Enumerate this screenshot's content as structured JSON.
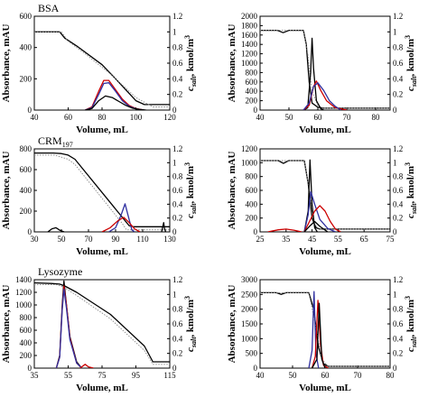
{
  "chart_data": [
    {
      "type": "line",
      "title": "BSA",
      "xlabel": "Volume, mL",
      "ylabel": "Absorbance, mAU",
      "y2label_main": "c",
      "y2label_sub": "salt",
      "y2label_unit": ", kmol/m",
      "y2label_sup": "3",
      "xlim": [
        40,
        120
      ],
      "ylim": [
        0,
        600
      ],
      "y2lim": [
        0,
        1.2
      ],
      "xticks": [
        "40",
        "60",
        "80",
        "100",
        "120"
      ],
      "yticks": [
        "0",
        "200",
        "400",
        "600"
      ],
      "y2ticks": [
        "0",
        "0.2",
        "0.4",
        "0.6",
        "0.8",
        "1",
        "1.2"
      ],
      "series": [
        {
          "color": "#000000",
          "style": "solid",
          "axis": "left",
          "x": [
            40,
            55,
            58,
            65,
            80,
            88,
            100,
            105,
            120
          ],
          "y": [
            500,
            500,
            460,
            410,
            290,
            200,
            60,
            35,
            35
          ]
        },
        {
          "color": "#888888",
          "style": "dotted",
          "axis": "left",
          "x": [
            40,
            56,
            60,
            70,
            85,
            100,
            110,
            120
          ],
          "y": [
            500,
            500,
            440,
            360,
            230,
            80,
            20,
            20
          ]
        },
        {
          "color": "#cc0000",
          "style": "solid",
          "axis": "left",
          "x": [
            70,
            74,
            78,
            81,
            84,
            88,
            92,
            96,
            100,
            105
          ],
          "y": [
            0,
            20,
            120,
            190,
            190,
            130,
            70,
            30,
            10,
            0
          ]
        },
        {
          "color": "#3030a0",
          "style": "solid",
          "axis": "left",
          "x": [
            70,
            74,
            78,
            81,
            84,
            88,
            92,
            96,
            100,
            105
          ],
          "y": [
            0,
            15,
            100,
            170,
            175,
            120,
            60,
            25,
            8,
            0
          ]
        },
        {
          "color": "#000000",
          "style": "solid",
          "axis": "left",
          "x": [
            70,
            74,
            78,
            82,
            86,
            90,
            94,
            98,
            102,
            106
          ],
          "y": [
            0,
            10,
            60,
            90,
            80,
            55,
            30,
            12,
            4,
            0
          ]
        }
      ]
    },
    {
      "type": "line",
      "title": "",
      "xlabel": "Volume, mL",
      "ylabel": "Absorbance, mAU",
      "y2label_main": "c",
      "y2label_sub": "salt",
      "y2label_unit": ", kmol/m",
      "y2label_sup": "3",
      "xlim": [
        40,
        85
      ],
      "ylim": [
        0,
        2000
      ],
      "y2lim": [
        0,
        1.2
      ],
      "xticks": [
        "40",
        "50",
        "60",
        "70",
        "80"
      ],
      "yticks": [
        "0",
        "200",
        "400",
        "600",
        "800",
        "1000",
        "1200",
        "1400",
        "1600",
        "1800",
        "2000"
      ],
      "y2ticks": [
        "0",
        "0.2",
        "0.4",
        "0.6",
        "0.8",
        "1",
        "1.2"
      ],
      "series": [
        {
          "color": "#000000",
          "style": "solid",
          "axis": "left",
          "x": [
            40,
            46,
            48,
            50,
            55,
            56,
            57,
            58,
            60,
            62,
            85
          ],
          "y": [
            1700,
            1700,
            1650,
            1700,
            1700,
            1400,
            600,
            150,
            60,
            40,
            40
          ]
        },
        {
          "color": "#888888",
          "style": "dotted",
          "axis": "left",
          "x": [
            40,
            55,
            56.5,
            58,
            60,
            62,
            85
          ],
          "y": [
            1700,
            1700,
            1200,
            400,
            100,
            40,
            40
          ]
        },
        {
          "color": "#000000",
          "style": "solid",
          "axis": "left",
          "x": [
            55,
            56.5,
            57.5,
            58,
            58.5,
            59.5,
            61,
            62
          ],
          "y": [
            0,
            50,
            800,
            1530,
            900,
            200,
            30,
            0
          ]
        },
        {
          "color": "#cc0000",
          "style": "solid",
          "axis": "left",
          "x": [
            55,
            57,
            58.5,
            59.5,
            61,
            63,
            66,
            70
          ],
          "y": [
            0,
            100,
            500,
            620,
            420,
            200,
            50,
            0
          ]
        },
        {
          "color": "#3030a0",
          "style": "solid",
          "axis": "left",
          "x": [
            55,
            57,
            58.5,
            60,
            62,
            64,
            66,
            68
          ],
          "y": [
            0,
            150,
            500,
            580,
            420,
            200,
            80,
            0
          ]
        }
      ]
    },
    {
      "type": "line",
      "title": "CRM",
      "title_sub": "197",
      "xlabel": "Volume, mL",
      "ylabel": "Absorbance, mAU",
      "y2label_main": "c",
      "y2label_sub": "salt",
      "y2label_unit": ", kmol/m",
      "y2label_sup": "3",
      "xlim": [
        30,
        130
      ],
      "ylim": [
        0,
        800
      ],
      "y2lim": [
        0,
        1.2
      ],
      "xticks": [
        "30",
        "50",
        "70",
        "90",
        "110",
        "130"
      ],
      "yticks": [
        "0",
        "200",
        "400",
        "600",
        "800"
      ],
      "y2ticks": [
        "0",
        "0.2",
        "0.4",
        "0.6",
        "0.8",
        "1",
        "1.2"
      ],
      "series": [
        {
          "color": "#000000",
          "style": "solid",
          "axis": "left",
          "x": [
            30,
            44,
            50,
            55,
            60,
            100,
            103,
            130
          ],
          "y": [
            760,
            760,
            755,
            740,
            700,
            60,
            50,
            50
          ]
        },
        {
          "color": "#888888",
          "style": "dotted",
          "axis": "left",
          "x": [
            30,
            45,
            55,
            60,
            95,
            98,
            130
          ],
          "y": [
            740,
            740,
            700,
            650,
            80,
            20,
            20
          ]
        },
        {
          "color": "#000000",
          "style": "solid",
          "axis": "left",
          "x": [
            40,
            43,
            46,
            49,
            52
          ],
          "y": [
            0,
            30,
            40,
            15,
            0
          ]
        },
        {
          "color": "#3030a0",
          "style": "solid",
          "axis": "left",
          "x": [
            85,
            90,
            94,
            97,
            100,
            102,
            104
          ],
          "y": [
            0,
            40,
            160,
            270,
            120,
            20,
            0
          ]
        },
        {
          "color": "#cc0000",
          "style": "solid",
          "axis": "left",
          "x": [
            80,
            86,
            92,
            96,
            100,
            104,
            108
          ],
          "y": [
            0,
            40,
            110,
            140,
            90,
            30,
            0
          ]
        },
        {
          "color": "#000000",
          "style": "solid",
          "axis": "left",
          "x": [
            124,
            125.5,
            126,
            127
          ],
          "y": [
            0,
            90,
            40,
            0
          ]
        }
      ]
    },
    {
      "type": "line",
      "title": "",
      "xlabel": "Volume, mL",
      "ylabel": "Absorbance, mAU",
      "y2label_main": "c",
      "y2label_sub": "salt",
      "y2label_unit": ", kmol/m",
      "y2label_sup": "3",
      "xlim": [
        25,
        75
      ],
      "ylim": [
        0,
        1200
      ],
      "y2lim": [
        0,
        1.2
      ],
      "xticks": [
        "25",
        "35",
        "45",
        "55",
        "65",
        "75"
      ],
      "yticks": [
        "0",
        "200",
        "400",
        "600",
        "800",
        "1000",
        "1200"
      ],
      "y2ticks": [
        "0",
        "0.2",
        "0.4",
        "0.6",
        "0.8",
        "1",
        "1.2"
      ],
      "series": [
        {
          "color": "#000000",
          "style": "solid",
          "axis": "left",
          "x": [
            25,
            32,
            34,
            36,
            42,
            43.5,
            45,
            46.5,
            48,
            75
          ],
          "y": [
            1030,
            1030,
            990,
            1030,
            1030,
            700,
            200,
            60,
            40,
            40
          ]
        },
        {
          "color": "#888888",
          "style": "dotted",
          "axis": "left",
          "x": [
            25,
            42,
            44,
            46,
            48,
            75
          ],
          "y": [
            1030,
            1030,
            600,
            100,
            40,
            40
          ]
        },
        {
          "color": "#000000",
          "style": "solid",
          "axis": "left",
          "x": [
            42,
            43.5,
            44.2,
            45,
            46,
            47
          ],
          "y": [
            0,
            300,
            1040,
            400,
            60,
            0
          ]
        },
        {
          "color": "#3030a0",
          "style": "solid",
          "axis": "left",
          "x": [
            42,
            43.5,
            44.5,
            46,
            48,
            51,
            54
          ],
          "y": [
            0,
            250,
            580,
            400,
            180,
            50,
            0
          ]
        },
        {
          "color": "#cc0000",
          "style": "solid",
          "axis": "left",
          "x": [
            42,
            44,
            46,
            48,
            50,
            52,
            54,
            56
          ],
          "y": [
            0,
            150,
            300,
            380,
            300,
            150,
            40,
            0
          ]
        },
        {
          "color": "#000000",
          "style": "solid",
          "axis": "left",
          "x": [
            42,
            44,
            46,
            48,
            51
          ],
          "y": [
            0,
            80,
            150,
            80,
            0
          ]
        },
        {
          "color": "#cc0000",
          "style": "solid",
          "axis": "left",
          "x": [
            28,
            32,
            35,
            38,
            41
          ],
          "y": [
            0,
            30,
            40,
            25,
            0
          ]
        }
      ]
    },
    {
      "type": "line",
      "title": "Lysozyme",
      "xlabel": "Volume, mL",
      "ylabel": "Absorbance, mAU",
      "y2label_main": "c",
      "y2label_sub": "salt",
      "y2label_unit": ", kmol/m",
      "y2label_sup": "3",
      "xlim": [
        35,
        115
      ],
      "ylim": [
        0,
        1400
      ],
      "y2lim": [
        0,
        1.2
      ],
      "xticks": [
        "35",
        "55",
        "75",
        "95",
        "115"
      ],
      "yticks": [
        "0",
        "200",
        "400",
        "600",
        "800",
        "1000",
        "1200",
        "1400"
      ],
      "y2ticks": [
        "0",
        "0.2",
        "0.4",
        "0.6",
        "0.8",
        "1",
        "1.2"
      ],
      "series": [
        {
          "color": "#000000",
          "style": "solid",
          "axis": "left",
          "x": [
            35,
            45,
            50,
            53,
            60,
            80,
            100,
            105,
            115
          ],
          "y": [
            1350,
            1340,
            1330,
            1300,
            1200,
            850,
            350,
            100,
            100
          ]
        },
        {
          "color": "#888888",
          "style": "dotted",
          "axis": "left",
          "x": [
            35,
            48,
            52,
            60,
            80,
            100,
            105,
            115
          ],
          "y": [
            1320,
            1320,
            1290,
            1150,
            780,
            280,
            60,
            60
          ]
        },
        {
          "color": "#000000",
          "style": "solid",
          "axis": "left",
          "x": [
            48,
            50,
            51.5,
            52.5,
            54,
            56,
            60,
            63
          ],
          "y": [
            0,
            200,
            1000,
            1380,
            1000,
            500,
            100,
            0
          ]
        },
        {
          "color": "#cc0000",
          "style": "solid",
          "axis": "left",
          "x": [
            48,
            50,
            51.5,
            52.5,
            54,
            56,
            60,
            63
          ],
          "y": [
            0,
            180,
            950,
            1300,
            1000,
            480,
            80,
            0
          ]
        },
        {
          "color": "#3030a0",
          "style": "solid",
          "axis": "left",
          "x": [
            48,
            50,
            51.5,
            52.5,
            54,
            56,
            60,
            63
          ],
          "y": [
            0,
            170,
            920,
            1250,
            950,
            450,
            80,
            0
          ]
        },
        {
          "color": "#cc0000",
          "style": "solid",
          "axis": "left",
          "x": [
            62,
            65,
            67,
            70
          ],
          "y": [
            0,
            60,
            20,
            0
          ]
        }
      ]
    },
    {
      "type": "line",
      "title": "",
      "xlabel": "Volume, mL",
      "ylabel": "Absorbance, mAU",
      "y2label_main": "c",
      "y2label_sub": "salt",
      "y2label_unit": ", kmol/m",
      "y2label_sup": "3",
      "xlim": [
        40,
        80
      ],
      "ylim": [
        0,
        3000
      ],
      "y2lim": [
        0,
        1.2
      ],
      "xticks": [
        "40",
        "50",
        "60",
        "70",
        "80"
      ],
      "yticks": [
        "0",
        "500",
        "1000",
        "1500",
        "2000",
        "2500",
        "3000"
      ],
      "y2ticks": [
        "0",
        "0.2",
        "0.4",
        "0.6",
        "0.8",
        "1",
        "1.2"
      ],
      "series": [
        {
          "color": "#000000",
          "style": "solid",
          "axis": "left",
          "x": [
            40,
            45,
            46.5,
            48,
            55,
            56.5,
            58,
            59.5,
            61,
            80
          ],
          "y": [
            2560,
            2560,
            2500,
            2560,
            2560,
            2000,
            700,
            150,
            60,
            60
          ]
        },
        {
          "color": "#888888",
          "style": "dotted",
          "axis": "left",
          "x": [
            40,
            55,
            57,
            59,
            61,
            80
          ],
          "y": [
            2560,
            2560,
            1500,
            300,
            60,
            60
          ]
        },
        {
          "color": "#3030a0",
          "style": "solid",
          "axis": "left",
          "x": [
            55,
            56,
            56.6,
            57.2,
            58
          ],
          "y": [
            0,
            600,
            2600,
            500,
            0
          ]
        },
        {
          "color": "#cc0000",
          "style": "solid",
          "axis": "left",
          "x": [
            56,
            57,
            57.8,
            58.6,
            59.5,
            61
          ],
          "y": [
            0,
            400,
            2300,
            800,
            100,
            0
          ]
        },
        {
          "color": "#000000",
          "style": "solid",
          "axis": "left",
          "x": [
            56,
            57.5,
            58.2,
            59,
            60
          ],
          "y": [
            0,
            300,
            2200,
            300,
            0
          ]
        }
      ]
    }
  ]
}
